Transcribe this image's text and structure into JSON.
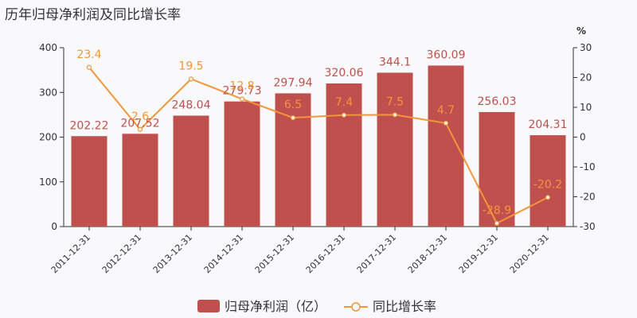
{
  "title": "历年归母净利润及同比增长率",
  "chart_data": {
    "type": "bar",
    "categories": [
      "2011-12-31",
      "2012-12-31",
      "2013-12-31",
      "2014-12-31",
      "2015-12-31",
      "2016-12-31",
      "2017-12-31",
      "2018-12-31",
      "2019-12-31",
      "2020-12-31"
    ],
    "series": [
      {
        "name": "归母净利润（亿）",
        "type": "bar",
        "axis": "left",
        "color": "#c0504d",
        "values": [
          202.22,
          207.52,
          248.04,
          279.73,
          297.94,
          320.06,
          344.1,
          360.09,
          256.03,
          204.31
        ],
        "labels": [
          "202.22",
          "207.52",
          "248.04",
          "279.73",
          "297.94",
          "320.06",
          "344.1",
          "360.09",
          "256.03",
          "204.31"
        ]
      },
      {
        "name": "同比增长率",
        "type": "line",
        "axis": "right",
        "color": "#f0963c",
        "values": [
          23.4,
          2.6,
          19.5,
          12.8,
          6.5,
          7.4,
          7.5,
          4.7,
          -28.9,
          -20.2
        ],
        "labels": [
          "23.4",
          "2.6",
          "19.5",
          "12.8",
          "6.5",
          "7.4",
          "7.5",
          "4.7",
          "-28.9",
          "-20.2"
        ]
      }
    ],
    "y_left": {
      "min": 0,
      "max": 400,
      "ticks": [
        "0",
        "100",
        "200",
        "300",
        "400"
      ]
    },
    "y_right": {
      "min": -30,
      "max": 30,
      "unit": "%",
      "ticks": [
        "-30",
        "-20",
        "-10",
        "0",
        "10",
        "20",
        "30"
      ]
    },
    "legend_position": "bottom"
  }
}
